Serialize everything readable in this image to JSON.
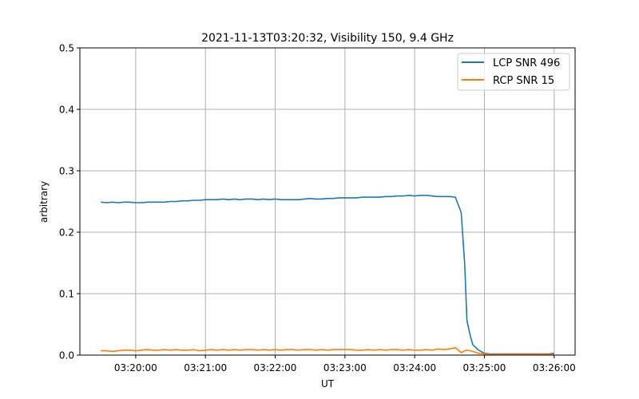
{
  "chart_data": {
    "type": "line",
    "title": "2021-11-13T03:20:32, Visibility 150, 9.4 GHz",
    "xlabel": "UT",
    "ylabel": "arbitrary",
    "ylim": [
      0,
      0.5
    ],
    "xlim": [
      "03:19:12",
      "03:26:18"
    ],
    "yticks": [
      "0.0",
      "0.1",
      "0.2",
      "0.3",
      "0.4",
      "0.5"
    ],
    "xticks": [
      "03:20:00",
      "03:21:00",
      "03:22:00",
      "03:23:00",
      "03:24:00",
      "03:25:00",
      "03:26:00"
    ],
    "grid": true,
    "legend_position": "top-right",
    "x": [
      "03:19:30",
      "03:19:35",
      "03:19:40",
      "03:19:45",
      "03:19:50",
      "03:19:55",
      "03:20:00",
      "03:20:05",
      "03:20:10",
      "03:20:15",
      "03:20:20",
      "03:20:25",
      "03:20:30",
      "03:20:35",
      "03:20:40",
      "03:20:45",
      "03:20:50",
      "03:20:55",
      "03:21:00",
      "03:21:05",
      "03:21:10",
      "03:21:15",
      "03:21:20",
      "03:21:25",
      "03:21:30",
      "03:21:35",
      "03:21:40",
      "03:21:45",
      "03:21:50",
      "03:21:55",
      "03:22:00",
      "03:22:05",
      "03:22:10",
      "03:22:15",
      "03:22:20",
      "03:22:25",
      "03:22:30",
      "03:22:35",
      "03:22:40",
      "03:22:45",
      "03:22:50",
      "03:22:55",
      "03:23:00",
      "03:23:05",
      "03:23:10",
      "03:23:15",
      "03:23:20",
      "03:23:25",
      "03:23:30",
      "03:23:35",
      "03:23:40",
      "03:23:45",
      "03:23:50",
      "03:23:55",
      "03:24:00",
      "03:24:05",
      "03:24:10",
      "03:24:15",
      "03:24:20",
      "03:24:25",
      "03:24:30",
      "03:24:35",
      "03:24:40",
      "03:24:43",
      "03:24:45",
      "03:24:48",
      "03:24:50",
      "03:24:55",
      "03:25:00",
      "03:25:05",
      "03:25:10",
      "03:25:15",
      "03:25:20",
      "03:25:25",
      "03:25:30",
      "03:25:35",
      "03:25:40",
      "03:25:45",
      "03:25:50",
      "03:25:55",
      "03:26:00"
    ],
    "series": [
      {
        "name": "LCP SNR 496",
        "color": "#1f77b4",
        "values": [
          0.249,
          0.248,
          0.249,
          0.248,
          0.249,
          0.249,
          0.248,
          0.248,
          0.249,
          0.249,
          0.249,
          0.249,
          0.25,
          0.25,
          0.251,
          0.251,
          0.252,
          0.252,
          0.253,
          0.253,
          0.253,
          0.254,
          0.253,
          0.254,
          0.253,
          0.254,
          0.254,
          0.253,
          0.254,
          0.253,
          0.254,
          0.253,
          0.253,
          0.253,
          0.253,
          0.254,
          0.255,
          0.254,
          0.254,
          0.255,
          0.255,
          0.256,
          0.256,
          0.256,
          0.256,
          0.257,
          0.257,
          0.257,
          0.257,
          0.258,
          0.258,
          0.259,
          0.259,
          0.26,
          0.259,
          0.26,
          0.26,
          0.259,
          0.258,
          0.258,
          0.258,
          0.257,
          0.232,
          0.15,
          0.056,
          0.03,
          0.017,
          0.008,
          0.003,
          0.002,
          0.002,
          0.002,
          0.002,
          0.002,
          0.002,
          0.002,
          0.002,
          0.002,
          0.002,
          0.002,
          0.003
        ]
      },
      {
        "name": "RCP SNR 15",
        "color": "#ff7f0e",
        "values": [
          0.007,
          0.007,
          0.006,
          0.007,
          0.008,
          0.008,
          0.007,
          0.008,
          0.009,
          0.008,
          0.008,
          0.009,
          0.008,
          0.009,
          0.008,
          0.008,
          0.009,
          0.007,
          0.008,
          0.009,
          0.008,
          0.009,
          0.008,
          0.009,
          0.008,
          0.009,
          0.009,
          0.008,
          0.009,
          0.008,
          0.009,
          0.008,
          0.009,
          0.009,
          0.008,
          0.009,
          0.009,
          0.008,
          0.009,
          0.008,
          0.009,
          0.009,
          0.009,
          0.009,
          0.008,
          0.008,
          0.009,
          0.008,
          0.009,
          0.008,
          0.009,
          0.009,
          0.008,
          0.009,
          0.008,
          0.008,
          0.009,
          0.008,
          0.01,
          0.009,
          0.01,
          0.012,
          0.004,
          0.007,
          0.008,
          0.007,
          0.006,
          0.003,
          0.002,
          0.001,
          0.001,
          0.001,
          0.001,
          0.001,
          0.001,
          0.001,
          0.001,
          0.001,
          0.001,
          0.001,
          0.001
        ]
      }
    ]
  }
}
